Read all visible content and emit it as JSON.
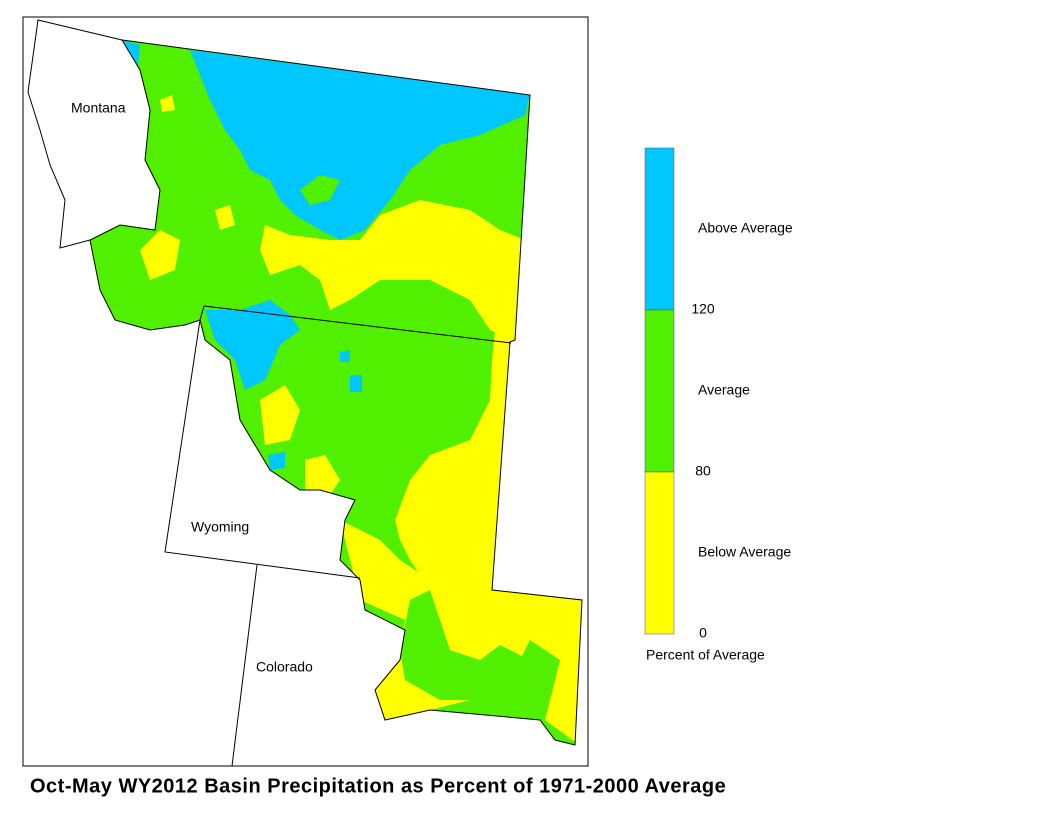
{
  "map": {
    "title": "Oct-May WY2012 Basin Precipitation as Percent of 1971-2000 Average",
    "states": [
      "Montana",
      "Wyoming",
      "Colorado"
    ],
    "legend": {
      "title": "Percent of Average",
      "classes": [
        {
          "label": "Above Average",
          "color": "#00c8ff"
        },
        {
          "label": "Average",
          "color": "#50f000"
        },
        {
          "label": "Below Average",
          "color": "#ffff00"
        }
      ],
      "ticks": [
        0,
        80,
        120
      ]
    }
  }
}
